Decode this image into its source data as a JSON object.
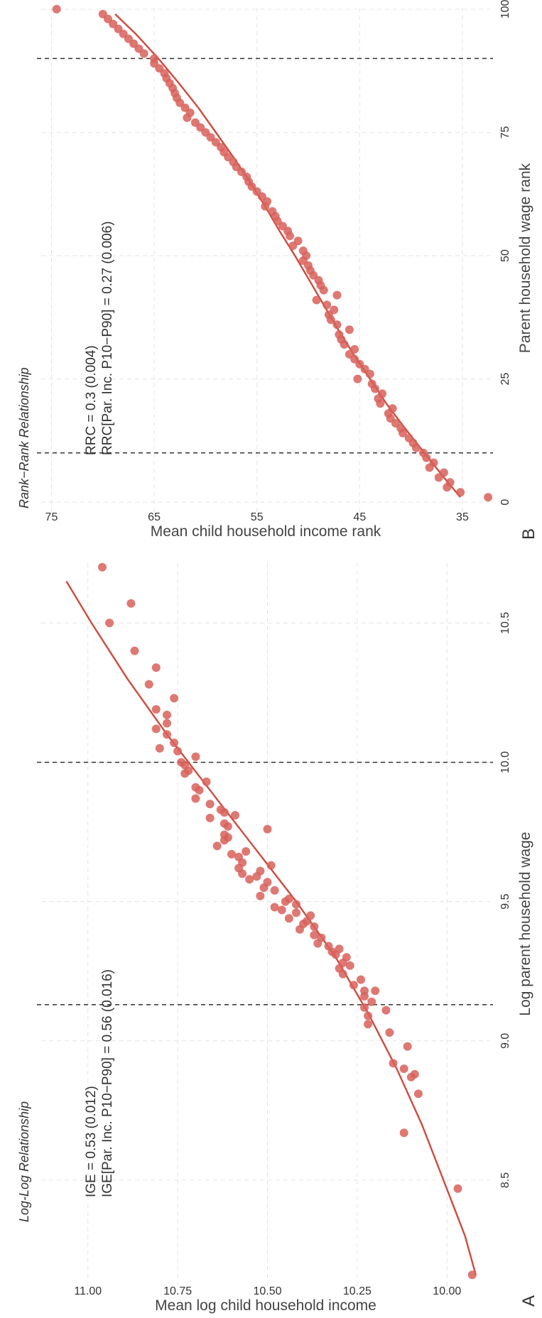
{
  "panel_labels": [
    "A",
    "B"
  ],
  "colors": {
    "points": "#d8605a",
    "fit_line": "#cf4a3e",
    "grid": "#e4e4e4",
    "vline": "#333333",
    "text": "#333333",
    "axis_title": "#444444"
  },
  "chart_data": [
    {
      "type": "scatter",
      "panel": "A",
      "title": "Log-Log Relationship",
      "xlabel": "Log parent household wage",
      "ylabel": "Mean log child household income",
      "xlim": [
        8.12,
        10.72
      ],
      "ylim": [
        9.88,
        11.13
      ],
      "xticks": [
        8.5,
        9.0,
        9.5,
        10.0,
        10.5
      ],
      "xtick_labels": [
        "8.5",
        "9.0",
        "9.5",
        "10.0",
        "10.5"
      ],
      "yticks": [
        10.0,
        10.25,
        10.5,
        10.75,
        11.0
      ],
      "ytick_labels": [
        "10.00",
        "10.25",
        "10.50",
        "10.75",
        "11.00"
      ],
      "grid": true,
      "vlines": [
        9.13,
        10.0
      ],
      "annotations": [
        "IGE = 0.53 (0.012)",
        "IGE[Par. Inc. P10−P90] = 0.56 (0.016)"
      ],
      "fit_curve": {
        "x": [
          8.16,
          8.3,
          8.5,
          8.7,
          8.9,
          9.1,
          9.3,
          9.5,
          9.7,
          9.9,
          10.1,
          10.3,
          10.5,
          10.65
        ],
        "y": [
          9.92,
          9.95,
          10.01,
          10.07,
          10.14,
          10.22,
          10.31,
          10.42,
          10.54,
          10.66,
          10.78,
          10.89,
          10.99,
          11.06
        ]
      },
      "points": {
        "x": [
          8.16,
          8.47,
          8.67,
          8.81,
          8.87,
          8.88,
          8.9,
          8.92,
          8.98,
          9.03,
          9.06,
          9.09,
          9.11,
          9.12,
          9.14,
          9.16,
          9.18,
          9.18,
          9.2,
          9.22,
          9.24,
          9.26,
          9.27,
          9.28,
          9.3,
          9.31,
          9.32,
          9.33,
          9.34,
          9.35,
          9.37,
          9.38,
          9.4,
          9.41,
          9.42,
          9.43,
          9.44,
          9.45,
          9.46,
          9.47,
          9.48,
          9.49,
          9.5,
          9.51,
          9.52,
          9.54,
          9.55,
          9.57,
          9.58,
          9.59,
          9.6,
          9.61,
          9.62,
          9.63,
          9.64,
          9.66,
          9.67,
          9.68,
          9.7,
          9.72,
          9.73,
          9.74,
          9.76,
          9.77,
          9.78,
          9.8,
          9.81,
          9.82,
          9.83,
          9.85,
          9.87,
          9.9,
          9.91,
          9.93,
          9.96,
          9.97,
          9.99,
          10.0,
          10.02,
          10.04,
          10.05,
          10.07,
          10.1,
          10.12,
          10.14,
          10.17,
          10.19,
          10.23,
          10.28,
          10.34,
          10.4,
          10.5,
          10.57,
          10.7
        ],
        "y": [
          9.93,
          9.97,
          10.12,
          10.08,
          10.1,
          10.09,
          10.12,
          10.15,
          10.11,
          10.16,
          10.22,
          10.22,
          10.17,
          10.23,
          10.21,
          10.23,
          10.23,
          10.2,
          10.26,
          10.24,
          10.29,
          10.3,
          10.27,
          10.29,
          10.28,
          10.31,
          10.32,
          10.3,
          10.33,
          10.36,
          10.35,
          10.37,
          10.41,
          10.37,
          10.4,
          10.39,
          10.44,
          10.38,
          10.42,
          10.46,
          10.48,
          10.42,
          10.45,
          10.44,
          10.52,
          10.48,
          10.51,
          10.5,
          10.55,
          10.53,
          10.57,
          10.52,
          10.58,
          10.49,
          10.57,
          10.58,
          10.6,
          10.56,
          10.64,
          10.62,
          10.61,
          10.62,
          10.5,
          10.61,
          10.62,
          10.66,
          10.59,
          10.62,
          10.63,
          10.66,
          10.7,
          10.69,
          10.7,
          10.67,
          10.73,
          10.72,
          10.73,
          10.74,
          10.7,
          10.75,
          10.8,
          10.76,
          10.78,
          10.81,
          10.78,
          10.78,
          10.81,
          10.76,
          10.83,
          10.81,
          10.87,
          10.94,
          10.88,
          10.96
        ]
      }
    },
    {
      "type": "scatter",
      "panel": "B",
      "title": "Rank−Rank Relationship",
      "xlabel": "Parent household wage rank",
      "ylabel": "Mean child household income rank",
      "xlim": [
        -2,
        101
      ],
      "ylim": [
        32.3,
        76
      ],
      "xticks": [
        0,
        25,
        50,
        75,
        100
      ],
      "xtick_labels": [
        "0",
        "25",
        "50",
        "75",
        "100"
      ],
      "yticks": [
        35,
        45,
        55,
        65,
        75
      ],
      "ytick_labels": [
        "35",
        "45",
        "55",
        "65",
        "75"
      ],
      "grid": true,
      "vlines": [
        10,
        90
      ],
      "annotations": [
        "RRC = 0.3 (0.004)",
        "RRC[Par. Inc. P10−P90] = 0.27 (0.006)"
      ],
      "fit_curve": {
        "x": [
          1,
          5,
          10,
          15,
          20,
          25,
          30,
          35,
          40,
          45,
          50,
          55,
          60,
          65,
          70,
          75,
          80,
          85,
          90,
          95,
          99
        ],
        "y": [
          35.2,
          36.8,
          38.7,
          40.6,
          42.4,
          44.0,
          45.6,
          47.1,
          48.5,
          49.9,
          51.3,
          52.8,
          54.2,
          55.7,
          57.3,
          59.0,
          60.7,
          62.6,
          64.6,
          66.8,
          68.8
        ]
      },
      "points": {
        "x": [
          1,
          2,
          3,
          4,
          5,
          6,
          7,
          8,
          9,
          10,
          11,
          12,
          13,
          14,
          15,
          16,
          17,
          18,
          19,
          20,
          21,
          22,
          23,
          24,
          25,
          26,
          27,
          28,
          29,
          30,
          31,
          32,
          33,
          34,
          35,
          36,
          37,
          38,
          39,
          40,
          41,
          42,
          43,
          44,
          45,
          46,
          47,
          48,
          49,
          50,
          51,
          52,
          53,
          54,
          55,
          56,
          57,
          58,
          59,
          60,
          61,
          62,
          63,
          64,
          65,
          66,
          67,
          68,
          69,
          70,
          71,
          72,
          73,
          74,
          75,
          76,
          77,
          78,
          79,
          80,
          81,
          82,
          83,
          84,
          85,
          86,
          87,
          88,
          89,
          90,
          91,
          92,
          93,
          94,
          95,
          96,
          97,
          98,
          99,
          100
        ],
        "y": [
          32.5,
          35.2,
          36.5,
          36.2,
          37.3,
          36.8,
          38.2,
          37.8,
          38.5,
          38.8,
          39.5,
          39.8,
          40.2,
          40.8,
          41.0,
          41.5,
          42.0,
          42.2,
          41.8,
          43.0,
          43.2,
          42.8,
          43.5,
          43.8,
          45.2,
          44.0,
          44.5,
          45.0,
          45.5,
          46.0,
          45.5,
          46.5,
          46.8,
          47.0,
          46.0,
          47.2,
          47.8,
          48.0,
          47.5,
          48.2,
          49.2,
          47.2,
          48.5,
          48.8,
          49.0,
          49.5,
          49.8,
          50.0,
          50.5,
          50.2,
          50.5,
          51.5,
          51.0,
          51.8,
          52.0,
          52.5,
          53.0,
          53.2,
          53.5,
          54.2,
          54.0,
          54.5,
          55.0,
          55.5,
          55.8,
          56.0,
          56.5,
          57.0,
          57.3,
          57.8,
          58.2,
          58.5,
          59.0,
          59.5,
          60.0,
          60.5,
          61.0,
          61.8,
          61.5,
          62.0,
          62.5,
          62.8,
          63.0,
          63.2,
          63.5,
          63.8,
          64.0,
          64.5,
          65.0,
          65.0,
          66.0,
          66.5,
          67.0,
          67.5,
          68.0,
          68.5,
          69.0,
          69.5,
          70.0,
          74.5
        ]
      }
    }
  ]
}
